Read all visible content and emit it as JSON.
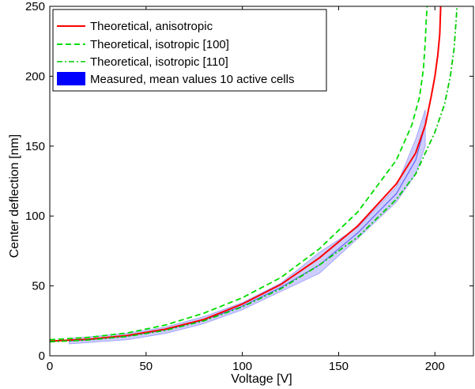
{
  "chart_data": {
    "type": "line",
    "xlabel": "Voltage [V]",
    "ylabel": "Center deflection [nm]",
    "xlim": [
      0,
      220
    ],
    "ylim": [
      0,
      250
    ],
    "xticks": [
      0,
      50,
      100,
      150,
      200
    ],
    "yticks": [
      0,
      50,
      100,
      150,
      200,
      250
    ],
    "grid": false,
    "legend_position": "top-left",
    "series": [
      {
        "name": "Theoretical, anisotropic",
        "color": "#ff0000",
        "style": "solid",
        "points": [
          [
            0,
            10.5
          ],
          [
            20,
            11.8
          ],
          [
            40,
            14.5
          ],
          [
            60,
            19
          ],
          [
            80,
            26
          ],
          [
            100,
            37
          ],
          [
            120,
            51
          ],
          [
            140,
            70
          ],
          [
            160,
            93
          ],
          [
            180,
            123
          ],
          [
            190,
            145
          ],
          [
            195,
            165
          ],
          [
            198,
            185
          ],
          [
            200,
            200
          ],
          [
            201.5,
            215
          ],
          [
            202.5,
            230
          ],
          [
            203,
            250
          ]
        ]
      },
      {
        "name": "Theoretical, isotropic [100]",
        "color": "#00dd00",
        "style": "dashed",
        "points": [
          [
            0,
            11.5
          ],
          [
            20,
            13.2
          ],
          [
            40,
            16.3
          ],
          [
            60,
            22
          ],
          [
            80,
            30.5
          ],
          [
            100,
            41.5
          ],
          [
            120,
            56
          ],
          [
            140,
            76.5
          ],
          [
            160,
            103
          ],
          [
            180,
            140
          ],
          [
            188,
            165
          ],
          [
            192,
            185
          ],
          [
            194,
            205
          ],
          [
            195,
            225
          ],
          [
            195.5,
            240
          ],
          [
            196,
            250
          ]
        ]
      },
      {
        "name": "Theoretical, isotropic [110]",
        "color": "#00cc00",
        "style": "dashdot",
        "points": [
          [
            0,
            10
          ],
          [
            20,
            11.3
          ],
          [
            40,
            13.8
          ],
          [
            60,
            18.2
          ],
          [
            80,
            25
          ],
          [
            100,
            35
          ],
          [
            120,
            48
          ],
          [
            140,
            65
          ],
          [
            160,
            85
          ],
          [
            180,
            112
          ],
          [
            190,
            130
          ],
          [
            200,
            160
          ],
          [
            205,
            180
          ],
          [
            208,
            200
          ],
          [
            210,
            220
          ],
          [
            211,
            240
          ],
          [
            211.5,
            250
          ]
        ]
      },
      {
        "name": "Measured, mean values 10 active cells",
        "color": "#0000ff",
        "style": "band",
        "points": [
          [
            10,
            10.5
          ],
          [
            20,
            11.5
          ],
          [
            40,
            14
          ],
          [
            60,
            18.5
          ],
          [
            80,
            25.5
          ],
          [
            100,
            35.5
          ],
          [
            120,
            49
          ],
          [
            140,
            65
          ],
          [
            160,
            88
          ],
          [
            180,
            116
          ],
          [
            190,
            140
          ],
          [
            195,
            165
          ]
        ],
        "band_upper": [
          [
            10,
            12.5
          ],
          [
            20,
            13.5
          ],
          [
            40,
            16
          ],
          [
            60,
            20.5
          ],
          [
            80,
            28
          ],
          [
            100,
            38
          ],
          [
            120,
            52
          ],
          [
            140,
            74
          ],
          [
            160,
            92
          ],
          [
            180,
            121
          ],
          [
            190,
            155
          ],
          [
            195,
            176
          ]
        ],
        "band_lower": [
          [
            10,
            8.5
          ],
          [
            20,
            9.5
          ],
          [
            40,
            11.5
          ],
          [
            60,
            16
          ],
          [
            80,
            23
          ],
          [
            100,
            33
          ],
          [
            120,
            46
          ],
          [
            140,
            59
          ],
          [
            160,
            84
          ],
          [
            180,
            110
          ],
          [
            190,
            130
          ],
          [
            195,
            150
          ]
        ]
      }
    ]
  }
}
